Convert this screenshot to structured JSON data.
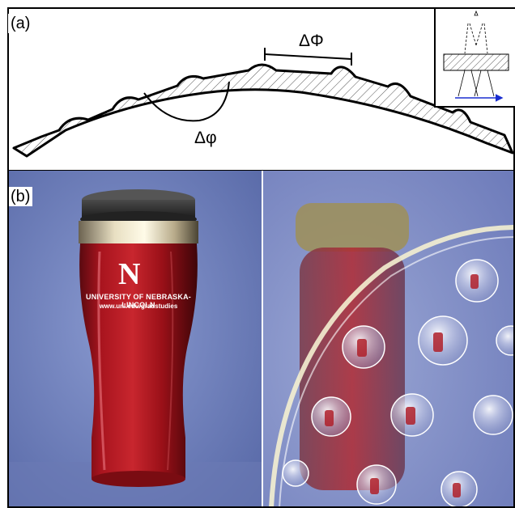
{
  "panel_a": {
    "label": "(a)",
    "delta_phi_big": "ΔΦ",
    "delta_phi_small": "Δφ"
  },
  "panel_b": {
    "label": "(b)",
    "mug_logo": "N",
    "mug_text_line1": "UNIVERSITY OF NEBRASKA-LINCOLN",
    "mug_text_line2": "www.unl.edu/gradstudies"
  },
  "colors": {
    "mug_red": "#b01a22",
    "background_blue": "#6e80b8",
    "hatch": "#555555",
    "arrow_blue": "#1a2ed0"
  }
}
